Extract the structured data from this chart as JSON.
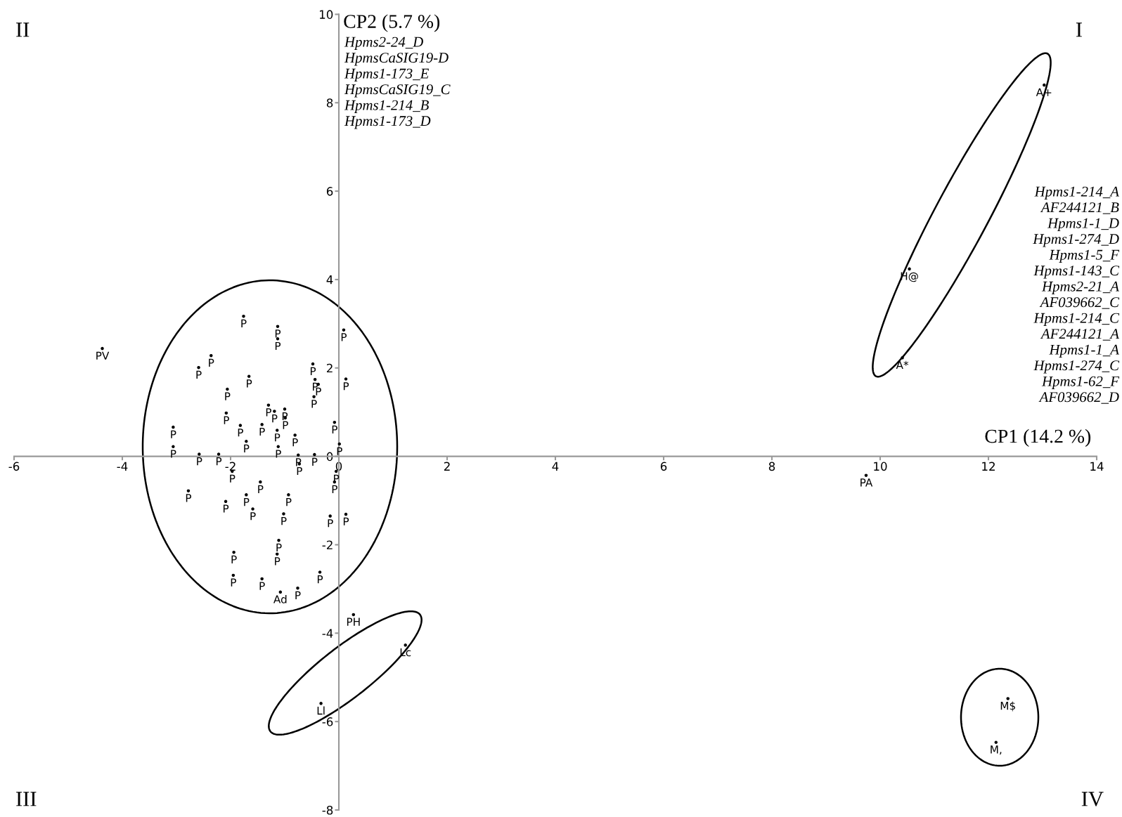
{
  "chart_data": {
    "type": "scatter",
    "xlabel": "CP1 (14.2 %)",
    "ylabel": "CP2 (5.7 %)",
    "x": [
      -1.76,
      -1.13,
      -1.13,
      0.09,
      -2.36,
      -2.59,
      -0.48,
      -1.66,
      0.13,
      -0.44,
      -0.38,
      -2.06,
      -0.46,
      -1.3,
      -1.19,
      -1.0,
      -0.99,
      -2.08,
      -3.06,
      -1.82,
      -1.42,
      -1.14,
      -0.08,
      -0.81,
      -1.71,
      -1.12,
      -3.06,
      0.01,
      -2.58,
      -2.22,
      -0.75,
      -0.45,
      -0.73,
      -1.97,
      -0.05,
      -0.08,
      -1.45,
      -2.78,
      -1.71,
      -0.93,
      -2.09,
      -1.59,
      -1.02,
      -0.16,
      0.13,
      -1.11,
      -1.94,
      -1.14,
      -0.35,
      -1.95,
      -1.42,
      -1.08,
      -0.76,
      -4.37,
      0.27,
      1.23,
      -0.33,
      9.74,
      13.03,
      10.54,
      10.41,
      12.36,
      12.14
    ],
    "values": [
      3.17,
      2.94,
      2.66,
      2.86,
      2.28,
      2.01,
      2.09,
      1.81,
      1.75,
      1.74,
      1.63,
      1.52,
      1.35,
      1.16,
      1.02,
      1.07,
      0.87,
      0.98,
      0.66,
      0.7,
      0.72,
      0.59,
      0.77,
      0.48,
      0.34,
      0.22,
      0.22,
      0.28,
      0.05,
      0.05,
      0.03,
      0.04,
      -0.17,
      -0.34,
      -0.34,
      -0.58,
      -0.58,
      -0.78,
      -0.87,
      -0.87,
      -1.02,
      -1.19,
      -1.3,
      -1.35,
      -1.31,
      -1.9,
      -2.17,
      -2.21,
      -2.62,
      -2.69,
      -2.77,
      -3.07,
      -2.98,
      2.44,
      -3.58,
      -4.27,
      -5.59,
      -0.43,
      8.4,
      4.24,
      2.23,
      -5.48,
      -6.47
    ],
    "value_labels": [
      "P",
      "P",
      "P",
      "P",
      "P",
      "P",
      "P",
      "P",
      "P",
      "P",
      "P",
      "P",
      "P",
      "P",
      "P",
      "P",
      "P",
      "P",
      "P",
      "P",
      "P",
      "P",
      "P",
      "P",
      "P",
      "P",
      "P",
      "P",
      "P",
      "P",
      "P",
      "P",
      "P",
      "P",
      "P",
      "P",
      "P",
      "P",
      "P",
      "P",
      "P",
      "P",
      "P",
      "P",
      "P",
      "P",
      "P",
      "P",
      "P",
      "P",
      "P",
      "Ad",
      "P",
      "PV",
      "PH",
      "Lc",
      "Ll",
      "PA",
      "A+",
      "H@",
      "A*",
      "M$",
      "M,"
    ],
    "marker": "circle",
    "color": "#000000",
    "xlim": [
      -6,
      14
    ],
    "ylim": [
      -8,
      10
    ],
    "xticks": [
      -6,
      -4,
      -2,
      0,
      2,
      4,
      6,
      8,
      10,
      12,
      14
    ],
    "yticks": [
      -8,
      -6,
      -4,
      -2,
      0,
      2,
      4,
      6,
      8,
      10
    ],
    "grid": false,
    "annotations": [
      "II",
      "I",
      "III",
      "IV",
      "Hpms2-24_D\nHpmsCaSIG19-D\nHpms1-173_E\nHpmsCaSIG19_C\nHpms1-214_B\nHpms1-173_D",
      "Hpms1-214_A\nAF244121_B\nHpms1-1_D\nHpms1-274_D\nHpms1-5_F\nHpms1-143_C\nHpms2-21_A\nAF039662_C\nHpms1-214_C\nAF244121_A\nHpms1-1_A\nHpms1-274_C\nHpms1-62_F\nAF039662_D"
    ]
  }
}
